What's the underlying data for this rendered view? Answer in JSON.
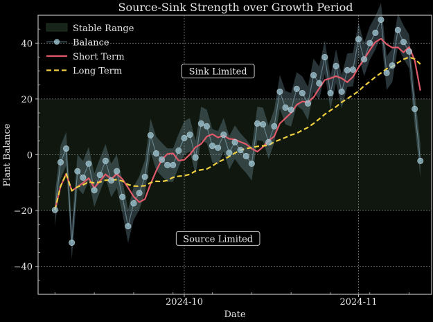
{
  "chart_data": {
    "type": "line",
    "title": "Source-Sink Strength over Growth Period",
    "xlabel": "Date",
    "ylabel": "Plant Balance",
    "x_start": "2024-09-08",
    "x_range": [
      "2024-09-05",
      "2024-11-14"
    ],
    "ylim": [
      -50,
      50
    ],
    "yticks": [
      -40,
      -20,
      0,
      20,
      40
    ],
    "xticks": [
      {
        "date": "2024-10-01",
        "label": "2024-10"
      },
      {
        "date": "2024-11-01",
        "label": "2024-11"
      }
    ],
    "grid": true,
    "legend_position": "top-left",
    "stable_range": {
      "label": "Stable Range",
      "low": -20,
      "high": 20,
      "color": "#1a2a1a"
    },
    "series": [
      {
        "name": "Balance",
        "color": "#8fb8c8",
        "marker": "circle",
        "band_width": 6,
        "values": [
          -19.8,
          -2.7,
          2.2,
          -31.5,
          -5.9,
          -8.2,
          -3.2,
          -12.7,
          -7.2,
          -2.2,
          -9.2,
          -5.9,
          -15.1,
          -25.6,
          -17.4,
          -13.7,
          -7.9,
          7.0,
          0.5,
          -1.7,
          -3.7,
          -3.7,
          1.5,
          6.0,
          7.2,
          -1.0,
          11.2,
          10.2,
          3.2,
          2.5,
          7.2,
          0.7,
          4.5,
          1.7,
          -0.5,
          -3.2,
          11.2,
          10.9,
          4.5,
          10.2,
          22.6,
          16.9,
          16.1,
          23.6,
          22.1,
          18.4,
          28.5,
          25.6,
          35.0,
          22.1,
          31.8,
          22.6,
          30.3,
          30.5,
          41.4,
          34.2,
          40.0,
          43.7,
          48.4,
          29.3,
          32.0,
          44.7,
          40.4,
          37.0,
          16.4,
          -2.2
        ]
      },
      {
        "name": "Short Term",
        "color": "#e05a6a",
        "style": "solid",
        "values": [
          -19.8,
          -11.3,
          -6.8,
          -12.9,
          -11.5,
          -10.1,
          -8.4,
          -11.9,
          -9.4,
          -7.0,
          -8.7,
          -6.9,
          -8.7,
          -11.8,
          -15.0,
          -17.0,
          -15.9,
          -10.5,
          -5.8,
          -1.7,
          0.3,
          0.5,
          -2.1,
          -1.8,
          0.1,
          2.7,
          3.9,
          6.5,
          7.4,
          6.2,
          6.9,
          5.7,
          5.5,
          4.6,
          3.8,
          2.2,
          1.1,
          2.8,
          5.0,
          6.6,
          11.2,
          13.1,
          15.0,
          17.9,
          19.1,
          18.8,
          20.6,
          23.8,
          26.8,
          27.4,
          28.2,
          27.4,
          26.0,
          27.9,
          31.3,
          34.3,
          37.5,
          40.4,
          41.6,
          39.6,
          38.4,
          38.5,
          36.7,
          38.6,
          33.8,
          23.0
        ]
      },
      {
        "name": "Long Term",
        "color": "#f0d040",
        "style": "dashed",
        "values": [
          -19.8,
          -11.3,
          -6.8,
          -12.9,
          -11.5,
          -10.8,
          -9.7,
          -10.1,
          -9.8,
          -9.1,
          -9.1,
          -8.9,
          -9.4,
          -10.7,
          -11.2,
          -11.3,
          -11.1,
          -10.0,
          -9.5,
          -9.6,
          -9.2,
          -8.1,
          -7.7,
          -7.5,
          -7.0,
          -5.8,
          -5.4,
          -5.1,
          -4.0,
          -2.7,
          -1.7,
          -0.6,
          0.6,
          1.7,
          2.2,
          2.6,
          3.0,
          3.2,
          3.4,
          4.6,
          5.4,
          6.2,
          7.1,
          7.7,
          8.8,
          9.8,
          11.2,
          12.8,
          14.5,
          15.9,
          17.2,
          18.8,
          20.1,
          21.4,
          22.8,
          24.7,
          26.2,
          27.9,
          29.3,
          30.8,
          31.6,
          33.0,
          34.2,
          35.0,
          34.3,
          32.5
        ]
      }
    ],
    "annotations": [
      {
        "text": "Sink Limited",
        "x": "2024-10-07",
        "y": 30
      },
      {
        "text": "Source Limited",
        "x": "2024-10-07",
        "y": -30
      }
    ]
  }
}
